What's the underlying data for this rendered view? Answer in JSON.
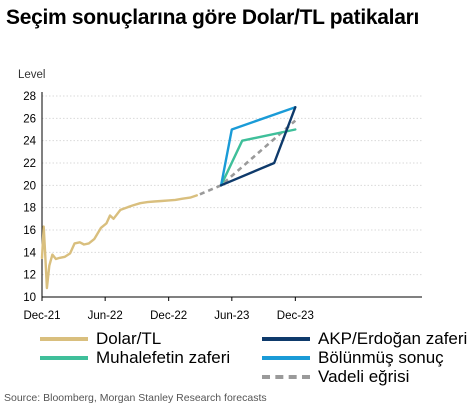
{
  "title": "Seçim sonuçlarına göre Dolar/TL patikaları",
  "source": "Source: Bloomberg, Morgan Stanley Research forecasts",
  "chart_data": {
    "type": "line",
    "ylabel": "Level",
    "ylim": [
      10,
      28
    ],
    "yticks": [
      10,
      12,
      14,
      16,
      18,
      20,
      22,
      24,
      26,
      28
    ],
    "xlim": [
      "2020-12-01",
      "2023-12-01"
    ],
    "xticks": [
      {
        "date": "2020-12-01",
        "label": "Dec-21"
      },
      {
        "date": "2021-06-01",
        "label": "Jun-22"
      },
      {
        "date": "2021-12-01",
        "label": "Dec-22"
      },
      {
        "date": "2022-06-01",
        "label": "Jun-23"
      },
      {
        "date": "2022-12-01",
        "label": "Dec-23"
      }
    ],
    "grid": true,
    "series": [
      {
        "name": "Dolar/TL",
        "color": "#d9bf7e",
        "style": "solid",
        "points": [
          [
            "2020-12-01",
            13.5
          ],
          [
            "2020-12-06",
            16.3
          ],
          [
            "2020-12-10",
            14.0
          ],
          [
            "2020-12-15",
            10.8
          ],
          [
            "2020-12-22",
            12.8
          ],
          [
            "2020-12-31",
            13.8
          ],
          [
            "2021-01-10",
            13.4
          ],
          [
            "2021-01-20",
            13.5
          ],
          [
            "2021-02-05",
            13.6
          ],
          [
            "2021-02-20",
            13.9
          ],
          [
            "2021-03-05",
            14.8
          ],
          [
            "2021-03-20",
            14.9
          ],
          [
            "2021-04-01",
            14.7
          ],
          [
            "2021-04-15",
            14.8
          ],
          [
            "2021-05-01",
            15.2
          ],
          [
            "2021-05-20",
            16.2
          ],
          [
            "2021-06-05",
            16.6
          ],
          [
            "2021-06-15",
            17.3
          ],
          [
            "2021-06-25",
            17.0
          ],
          [
            "2021-07-15",
            17.8
          ],
          [
            "2021-08-01",
            18.0
          ],
          [
            "2021-08-20",
            18.2
          ],
          [
            "2021-09-10",
            18.4
          ],
          [
            "2021-10-01",
            18.5
          ],
          [
            "2021-10-20",
            18.55
          ],
          [
            "2021-11-10",
            18.6
          ],
          [
            "2021-12-01",
            18.65
          ],
          [
            "2021-12-20",
            18.7
          ],
          [
            "2022-01-10",
            18.8
          ],
          [
            "2022-02-01",
            18.9
          ],
          [
            "2022-02-20",
            19.1
          ]
        ]
      },
      {
        "name": "Vadeli eğrisi",
        "color": "#9a9a9a",
        "style": "dashed",
        "points": [
          [
            "2022-03-01",
            19.2
          ],
          [
            "2022-05-01",
            20.0
          ],
          [
            "2022-12-01",
            25.8
          ]
        ]
      },
      {
        "name": "AKP/Erdoğan zaferi",
        "color": "#0e3a6b",
        "style": "solid",
        "points": [
          [
            "2022-05-01",
            20.0
          ],
          [
            "2022-10-01",
            22.0
          ],
          [
            "2022-12-01",
            27.0
          ]
        ]
      },
      {
        "name": "Muhalefetin zaferi",
        "color": "#3fbf9a",
        "style": "solid",
        "points": [
          [
            "2022-05-01",
            20.0
          ],
          [
            "2022-07-01",
            24.0
          ],
          [
            "2022-12-01",
            25.0
          ]
        ]
      },
      {
        "name": "Bölünmüş sonuç",
        "color": "#1a9bd7",
        "style": "solid",
        "points": [
          [
            "2022-05-01",
            20.0
          ],
          [
            "2022-06-01",
            25.0
          ],
          [
            "2022-12-01",
            27.0
          ]
        ]
      }
    ]
  }
}
